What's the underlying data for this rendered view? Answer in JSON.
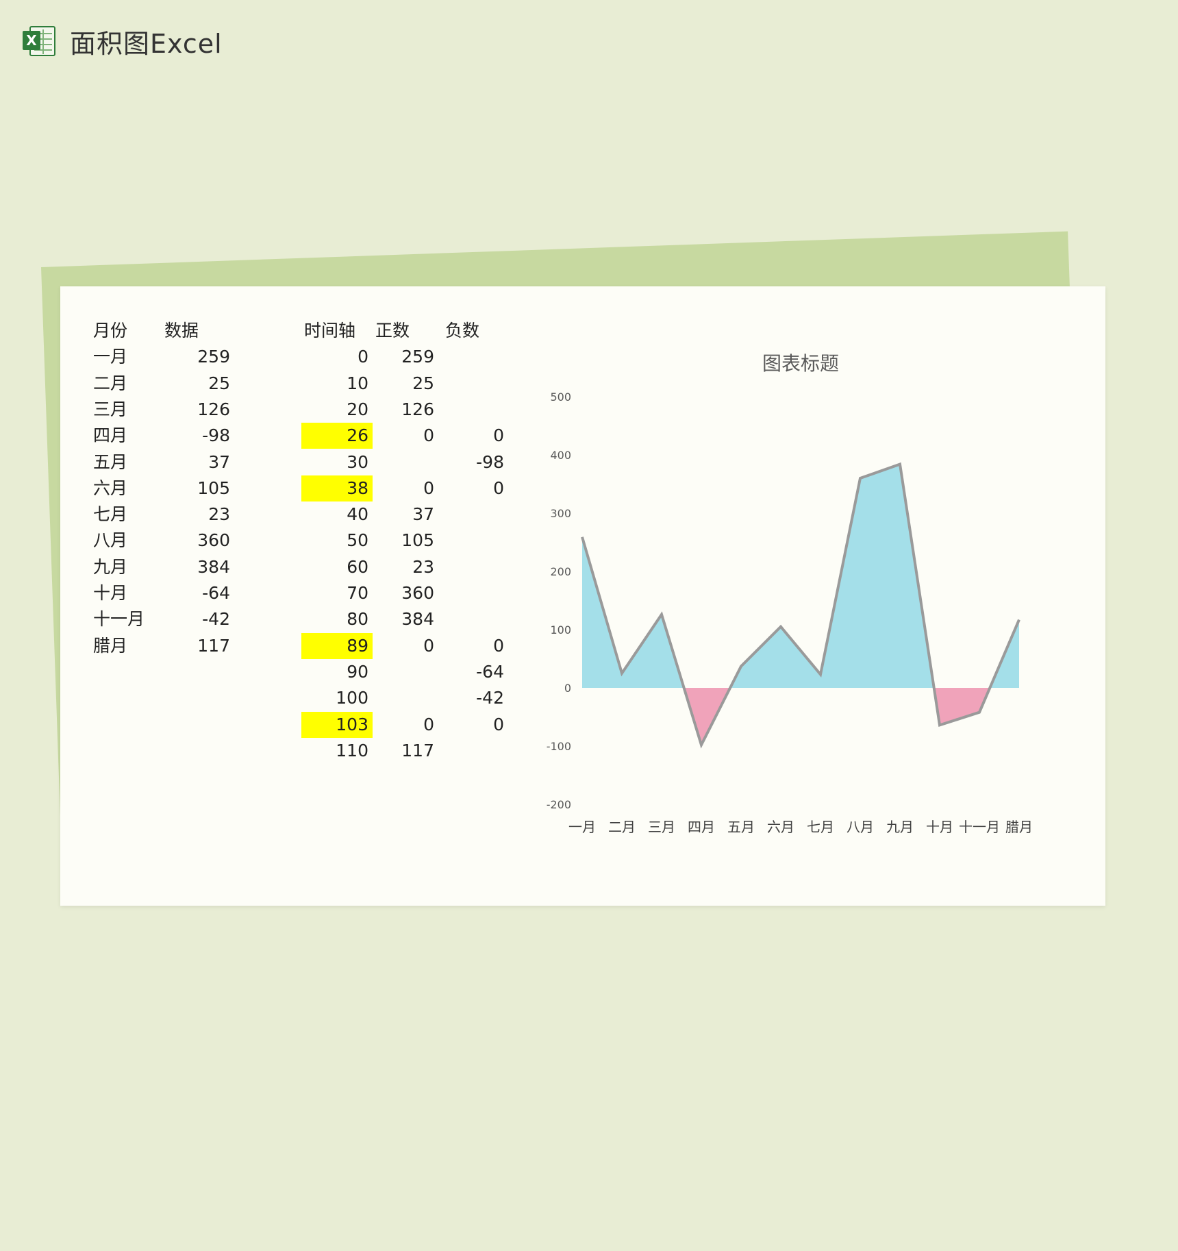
{
  "header": {
    "title": "面积图Excel"
  },
  "table1": {
    "headers": [
      "月份",
      "数据"
    ],
    "rows": [
      [
        "一月",
        "259"
      ],
      [
        "二月",
        "25"
      ],
      [
        "三月",
        "126"
      ],
      [
        "四月",
        "-98"
      ],
      [
        "五月",
        "37"
      ],
      [
        "六月",
        "105"
      ],
      [
        "七月",
        "23"
      ],
      [
        "八月",
        "360"
      ],
      [
        "九月",
        "384"
      ],
      [
        "十月",
        "-64"
      ],
      [
        "十一月",
        "-42"
      ],
      [
        "腊月",
        "117"
      ]
    ]
  },
  "table2": {
    "headers": [
      "时间轴",
      "正数",
      "负数"
    ],
    "rows": [
      {
        "t": "0",
        "p": "259",
        "n": "",
        "hl": false
      },
      {
        "t": "10",
        "p": "25",
        "n": "",
        "hl": false
      },
      {
        "t": "20",
        "p": "126",
        "n": "",
        "hl": false
      },
      {
        "t": "26",
        "p": "0",
        "n": "0",
        "hl": true
      },
      {
        "t": "30",
        "p": "",
        "n": "-98",
        "hl": false
      },
      {
        "t": "38",
        "p": "0",
        "n": "0",
        "hl": true
      },
      {
        "t": "40",
        "p": "37",
        "n": "",
        "hl": false
      },
      {
        "t": "50",
        "p": "105",
        "n": "",
        "hl": false
      },
      {
        "t": "60",
        "p": "23",
        "n": "",
        "hl": false
      },
      {
        "t": "70",
        "p": "360",
        "n": "",
        "hl": false
      },
      {
        "t": "80",
        "p": "384",
        "n": "",
        "hl": false
      },
      {
        "t": "89",
        "p": "0",
        "n": "0",
        "hl": true
      },
      {
        "t": "90",
        "p": "",
        "n": "-64",
        "hl": false
      },
      {
        "t": "100",
        "p": "",
        "n": "-42",
        "hl": false
      },
      {
        "t": "103",
        "p": "0",
        "n": "0",
        "hl": true
      },
      {
        "t": "110",
        "p": "117",
        "n": "",
        "hl": false
      }
    ]
  },
  "chart_data": {
    "type": "area",
    "title": "图表标题",
    "categories": [
      "一月",
      "二月",
      "三月",
      "四月",
      "五月",
      "六月",
      "七月",
      "八月",
      "九月",
      "十月",
      "十一月",
      "腊月"
    ],
    "x": [
      0,
      10,
      20,
      30,
      40,
      50,
      60,
      70,
      80,
      90,
      100,
      110
    ],
    "values": [
      259,
      25,
      126,
      -98,
      37,
      105,
      23,
      360,
      384,
      -64,
      -42,
      117
    ],
    "ylim": [
      -200,
      500
    ],
    "yticks": [
      "500",
      "400",
      "300",
      "200",
      "100",
      "0",
      "-100",
      "-200"
    ],
    "positive_color": "#a4dfe9",
    "negative_color": "#f0a3ba",
    "line_color": "#9a9a9a",
    "grid": false,
    "legend": "none"
  }
}
